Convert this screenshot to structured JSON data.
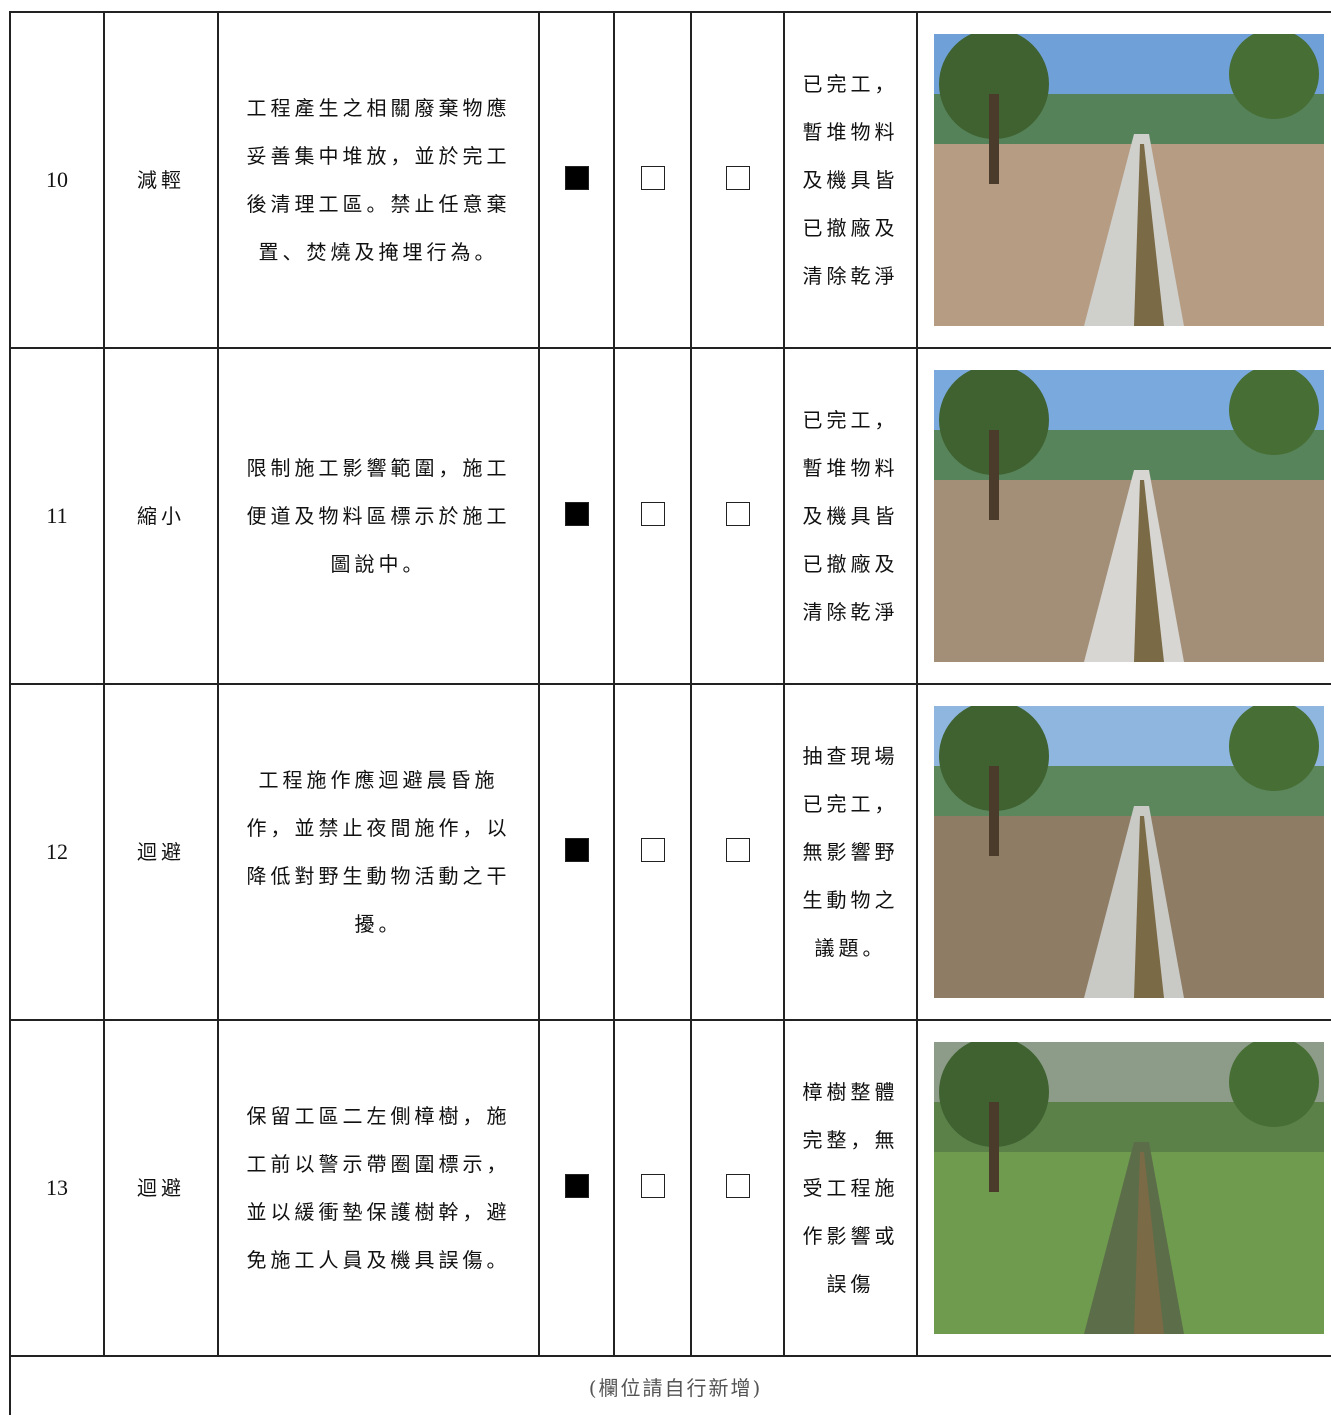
{
  "rows": [
    {
      "no": "10",
      "strategy": "減輕",
      "measure": "工程產生之相關廢棄物應妥善集中堆放，並於完工後清理工區。禁止任意棄置、焚燒及掩埋行為。",
      "checks": [
        true,
        false,
        false
      ],
      "result": "已完工，暫堆物料及機具皆已撤廠及清除乾淨"
    },
    {
      "no": "11",
      "strategy": "縮小",
      "measure": "限制施工影響範圍，施工便道及物料區標示於施工圖說中。",
      "checks": [
        true,
        false,
        false
      ],
      "result": "已完工，暫堆物料及機具皆已撤廠及清除乾淨"
    },
    {
      "no": "12",
      "strategy": "迴避",
      "measure": "工程施作應迴避晨昏施作，並禁止夜間施作，以降低對野生動物活動之干擾。",
      "checks": [
        true,
        false,
        false
      ],
      "result": "抽查現場已完工，無影響野生動物之議題。"
    },
    {
      "no": "13",
      "strategy": "迴避",
      "measure": "保留工區二左側樟樹，施工前以警示帶圈圍標示，並以緩衝墊保護樹幹，避免施工人員及機具誤傷。",
      "checks": [
        true,
        false,
        false
      ],
      "result": "樟樹整體完整，無受工程施作影響或誤傷"
    }
  ],
  "footer": "(欄位請自行新增)"
}
